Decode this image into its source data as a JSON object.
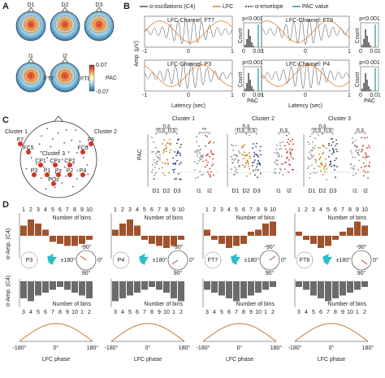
{
  "A": {
    "letter": "A",
    "maps": [
      "D1",
      "D2",
      "D3",
      "I1",
      "I2"
    ],
    "electrodes": [
      "FT7",
      "FT8"
    ],
    "colorbar": {
      "max": "0.07",
      "label": "PAC",
      "min": "-0.07"
    }
  },
  "B": {
    "letter": "B",
    "legend": [
      "α-oscillations (C4)",
      "LFC",
      "α-envelope",
      "PAC value"
    ],
    "plots": [
      {
        "channel": "LFC-Channel: FT7",
        "p": "p<0.001"
      },
      {
        "channel": "LFC-Channel: FT8",
        "p": "p<0.001"
      },
      {
        "channel": "LFC-Channel: P3",
        "p": "p<0.001"
      },
      {
        "channel": "LFC-Channel: P4",
        "p": "p<0.001"
      }
    ],
    "ylabel": "Amp. (μV)",
    "xlabel": "Latency (sec)",
    "xticks": [
      "-1",
      "0",
      "1"
    ],
    "hist_ylabel": "Count",
    "hist_xlabel": "PAC",
    "hist_xticks": [
      "0",
      "0.01"
    ]
  },
  "C": {
    "letter": "C",
    "clusters": [
      "Cluster 1",
      "Cluster 2",
      "Cluster 3"
    ],
    "electrodes": [
      "F7",
      "FC5",
      "F8",
      "FC6",
      "CP1",
      "CPz",
      "CP2",
      "P3",
      "P1",
      "Pz",
      "P2",
      "P4",
      "POz"
    ],
    "ylabel": "PAC",
    "scatter": [
      {
        "title": "Cluster 1",
        "sig": [
          "n.s",
          "n.s",
          "n.s",
          "**"
        ]
      },
      {
        "title": "Cluster 2",
        "sig": [
          "n.s",
          "n.s",
          "n.s",
          "n.s"
        ]
      },
      {
        "title": "Cluster 3",
        "sig": [
          "n.s",
          "n.s",
          "n.s",
          "n.s"
        ]
      }
    ],
    "groups": [
      "D1",
      "D2",
      "D3",
      "I1",
      "I2"
    ]
  },
  "D": {
    "letter": "D",
    "ylabel": "α-Amp. (C4)",
    "bins_label": "Number of bins",
    "bins_top": [
      1,
      2,
      3,
      4,
      5,
      6,
      7,
      8,
      9,
      10
    ],
    "bins_bottom": [
      3,
      4,
      5,
      6,
      7,
      8,
      9,
      10,
      1,
      2
    ],
    "angles": [
      "-90°",
      "0°",
      "90°",
      "±180°"
    ],
    "xlabel": "LFC phase",
    "phase_ticks": [
      "-180°",
      "0°",
      "180°"
    ],
    "columns": [
      {
        "channel": "P3",
        "top": [
          2.5,
          4,
          3,
          1.5,
          -1.5,
          -2,
          -2.5,
          -2.5,
          -2,
          -1
        ],
        "bottom": [
          -3,
          -3.5,
          -2.5,
          -2,
          -1.5,
          -1,
          -1.5,
          -2,
          -2.5,
          -3
        ]
      },
      {
        "channel": "P4",
        "top": [
          1.5,
          3,
          4,
          2.5,
          -1,
          -2,
          -2.5,
          -3,
          -2.5,
          -1
        ],
        "bottom": [
          -3.5,
          -3,
          -2.5,
          -2,
          -1.5,
          -1,
          -1.5,
          -2,
          -3,
          -3.5
        ]
      },
      {
        "channel": "FT7",
        "top": [
          1.5,
          -1,
          -2,
          -3,
          -2.5,
          -2,
          1,
          1.5,
          3,
          3.5
        ],
        "bottom": [
          -1.5,
          -2,
          -2.5,
          -3,
          -3.5,
          -3,
          -2.5,
          -2,
          -1.5,
          -1
        ]
      },
      {
        "channel": "FT8",
        "top": [
          1,
          -1,
          -2,
          -3,
          -2.5,
          -1,
          1,
          2,
          3.5,
          2.5
        ],
        "bottom": [
          -1,
          -1.5,
          -2.5,
          -3,
          -3.5,
          -3,
          -2.5,
          -2,
          -1.5,
          -1
        ]
      }
    ]
  }
}
